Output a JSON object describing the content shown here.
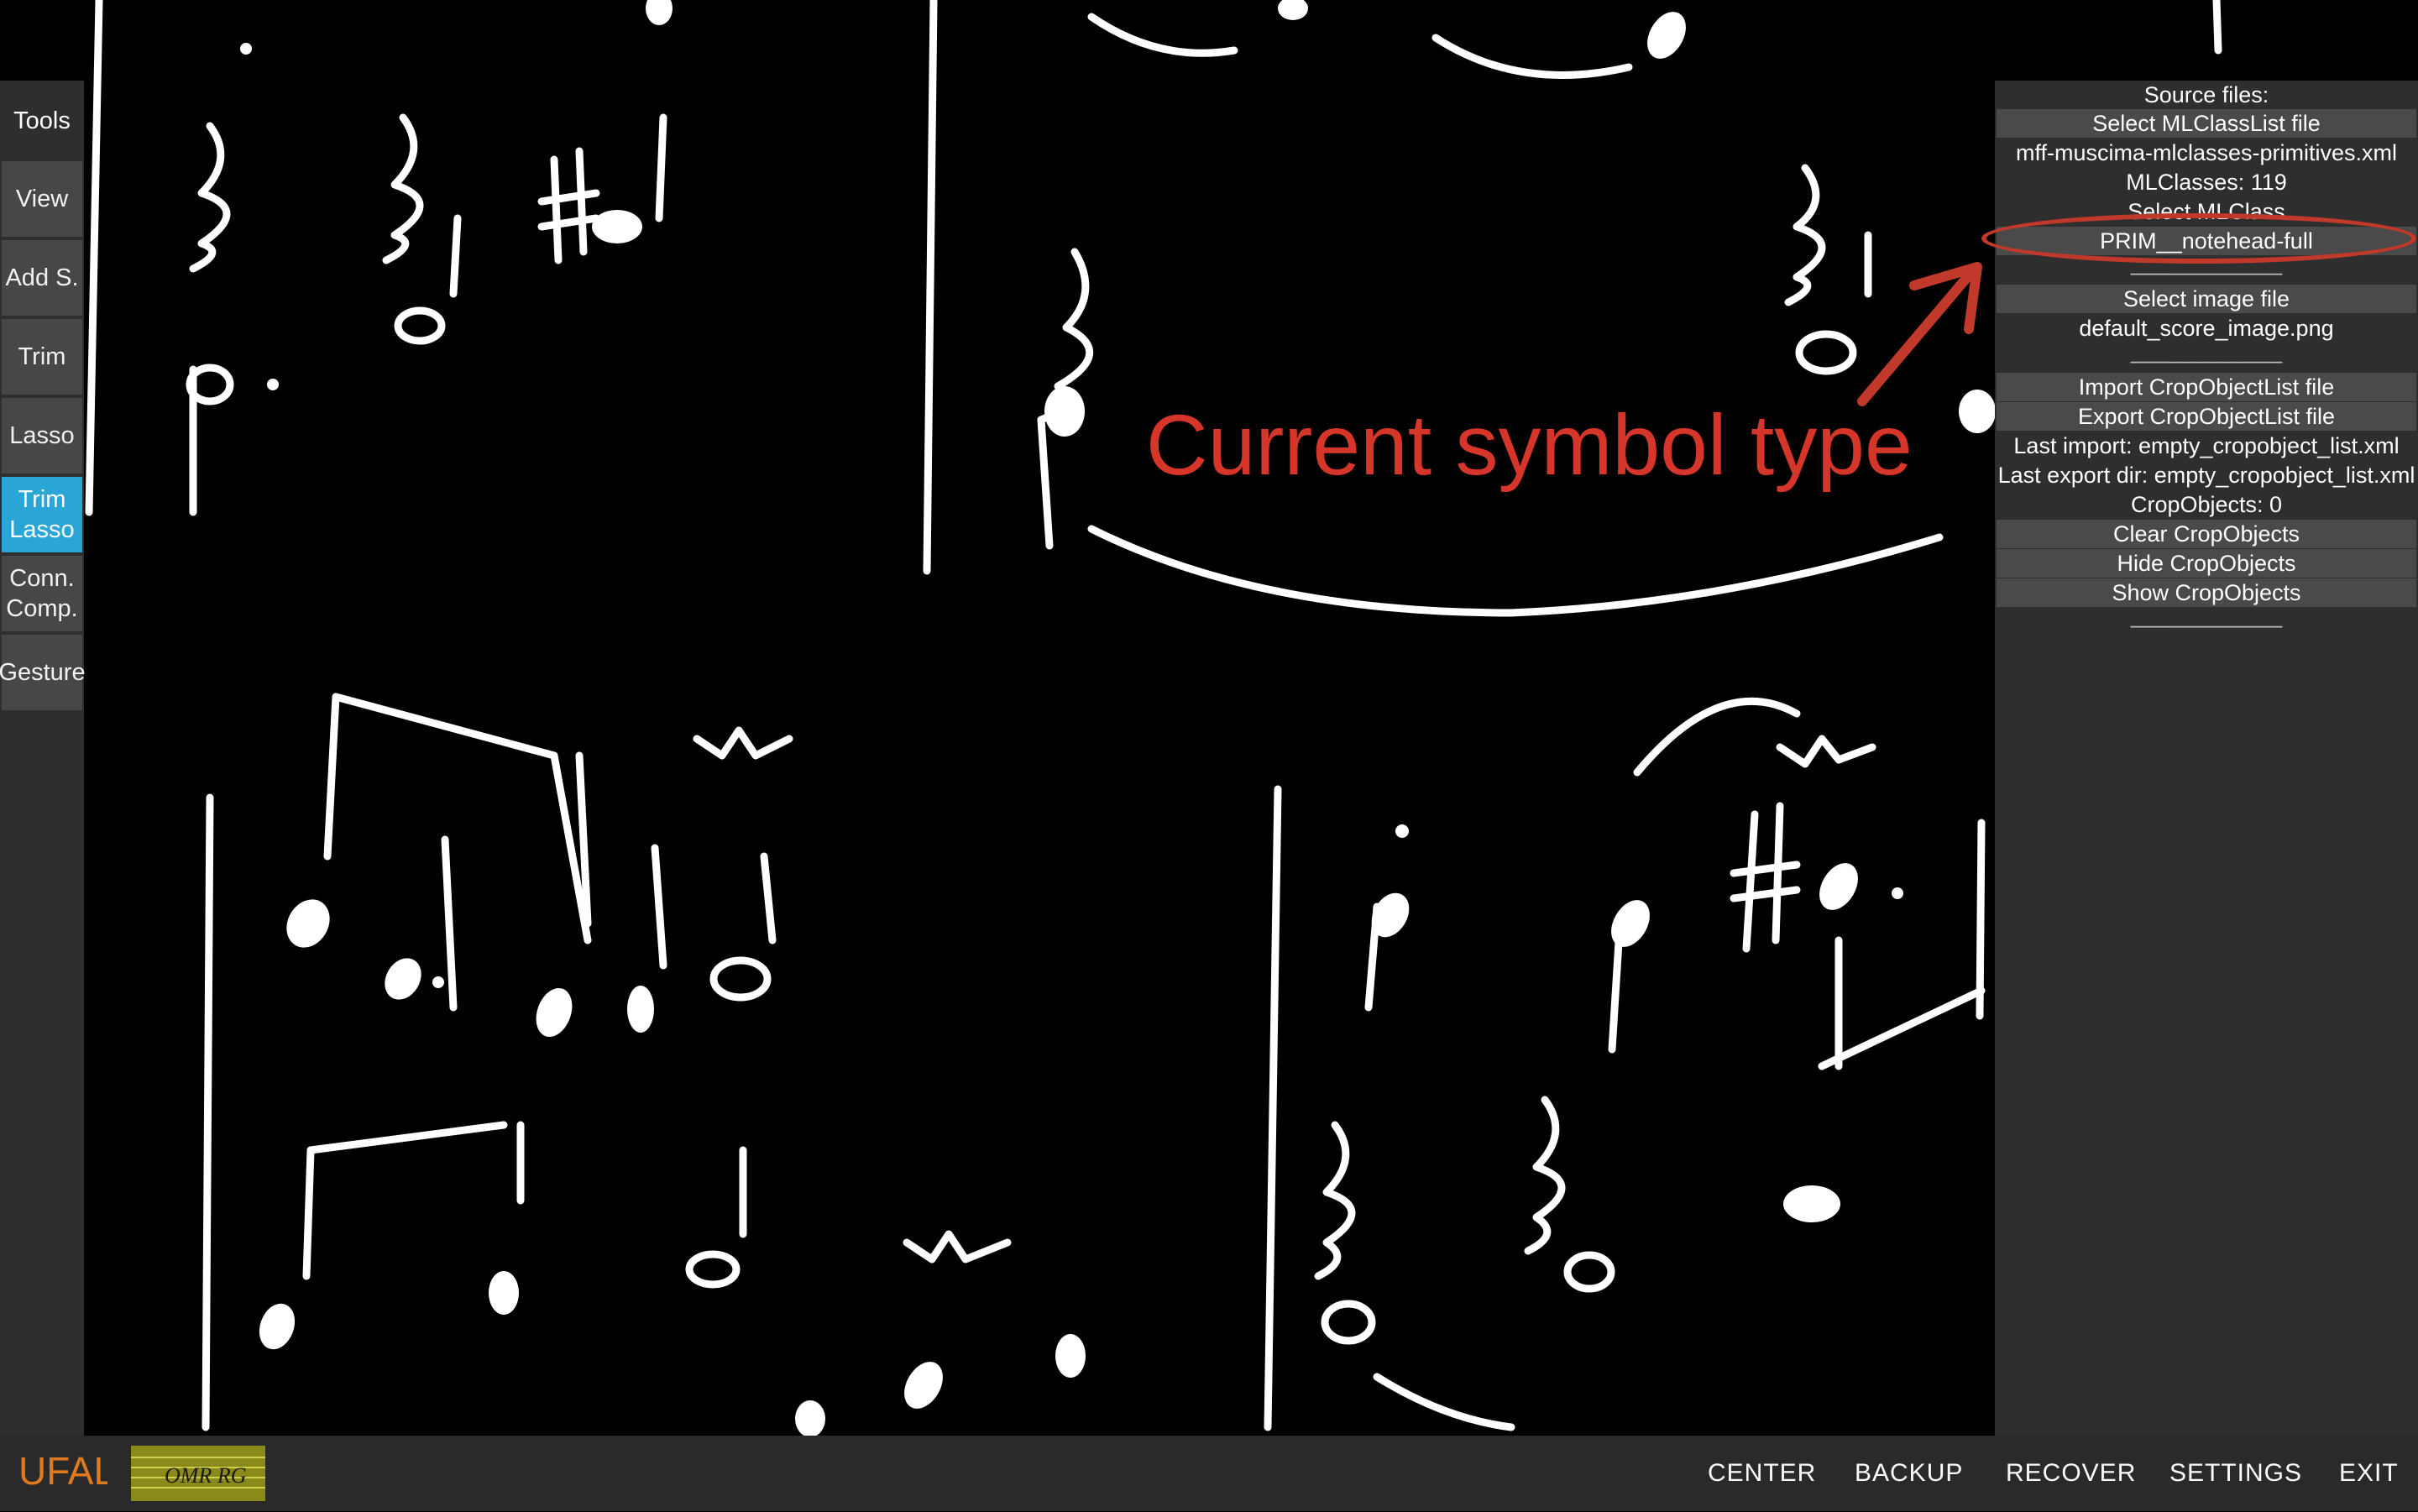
{
  "colors": {
    "accent_active": "#29a6d6",
    "annotation_red": "#d6352a",
    "panel_bg": "#2e2e2e",
    "button_bg": "#4a4a4a"
  },
  "tools": {
    "header": "Tools",
    "items": [
      {
        "label": "View"
      },
      {
        "label": "Add S."
      },
      {
        "label": "Trim"
      },
      {
        "label": "Lasso"
      },
      {
        "label": "Trim\nLasso",
        "active": true
      },
      {
        "label": "Conn.\nComp."
      },
      {
        "label": "Gesture"
      }
    ]
  },
  "side_panel": {
    "source_files_header": "Source files:",
    "select_mlclasslist_button": "Select MLClassList file",
    "mlclasslist_filename": "mff-muscima-mlclasses-primitives.xml",
    "mlclasses_count": "MLClasses: 119",
    "select_mlclass_label": "Select MLClass",
    "current_mlclass": "PRIM__notehead-full",
    "separator": "____________",
    "select_image_button": "Select image file",
    "image_filename": "default_score_image.png",
    "import_button": "Import CropObjectList file",
    "export_button": "Export CropObjectList file",
    "last_import": "Last import: empty_cropobject_list.xml",
    "last_export_dir": "Last export dir: empty_cropobject_list.xml",
    "cropobjects_count": "CropObjects: 0",
    "clear_button": "Clear CropObjects",
    "hide_button": "Hide CropObjects",
    "show_button": "Show CropObjects"
  },
  "annotation": {
    "label": "Current symbol type"
  },
  "bottom_bar": {
    "logo_ufal": "UFAL",
    "logo_omr": "OMR RG",
    "center": "CENTER",
    "backup": "BACKUP",
    "recover": "RECOVER",
    "settings": "SETTINGS",
    "exit": "EXIT"
  }
}
